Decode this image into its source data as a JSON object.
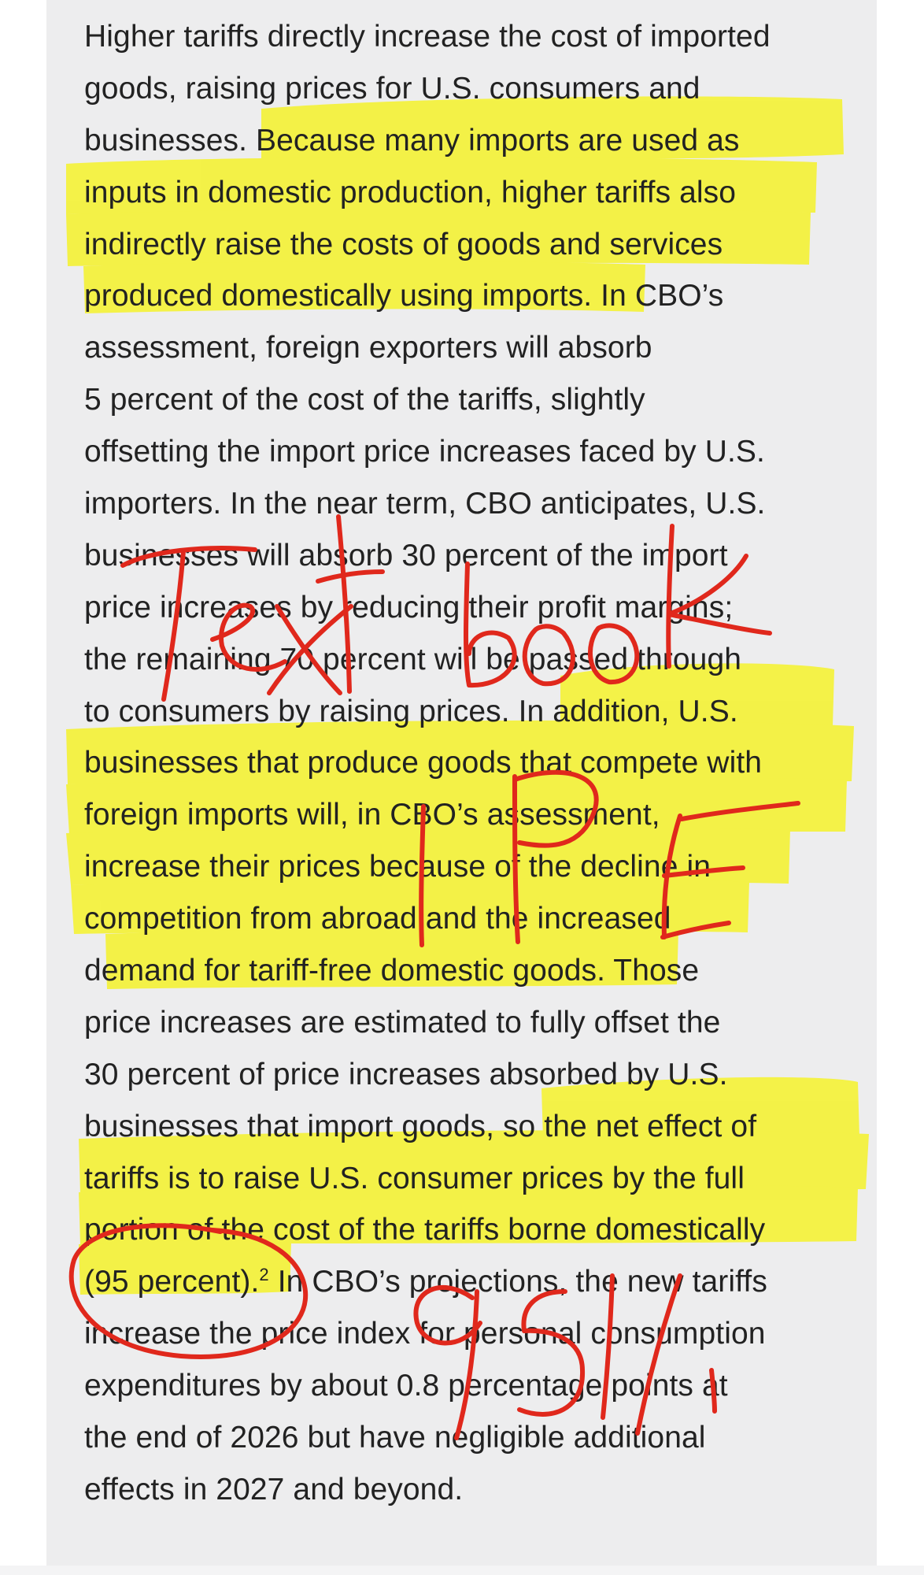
{
  "document": {
    "lines": [
      "Higher tariffs directly increase the cost of imported",
      "goods, raising prices for U.S. consumers and",
      "businesses. Because many imports are used as",
      "inputs in domestic production, higher tariffs also",
      "indirectly raise the costs of goods and services",
      "produced domestically using imports. In CBO’s",
      "assessment, foreign exporters will absorb",
      "5 percent of the cost of the tariffs, slightly",
      "offsetting the import price increases faced by U.S.",
      "importers. In the near term, CBO anticipates, U.S.",
      "businesses will absorb 30 percent of the import",
      "price increases by reducing their profit margins;",
      "the remaining 70 percent will be passed through",
      "to consumers by raising prices. In addition, U.S.",
      "businesses that produce goods that compete with",
      "foreign imports will, in CBO’s assessment,",
      "increase their prices because of the decline in",
      "competition from abroad and the increased",
      "demand for tariff-free domestic goods. Those",
      "price increases are estimated to fully offset the",
      "30 percent of price increases absorbed by U.S.",
      "businesses that import goods, so the net effect of",
      "tariffs is to raise U.S. consumer prices by the full",
      "portion of the cost of the tariffs borne domestically",
      "(95 percent).",
      "increase the price index for personal consumption",
      "expenditures by about 0.8 percentage points at",
      "the end of 2026 but have negligible additional",
      "effects in 2027 and beyond."
    ],
    "footnote_marker": "2",
    "line25_tail": " In CBO’s projections, the new tariffs"
  },
  "colors": {
    "highlight": "#f5f22a",
    "ink": "#e0281c",
    "panel": "#ededee",
    "text": "#222222"
  }
}
